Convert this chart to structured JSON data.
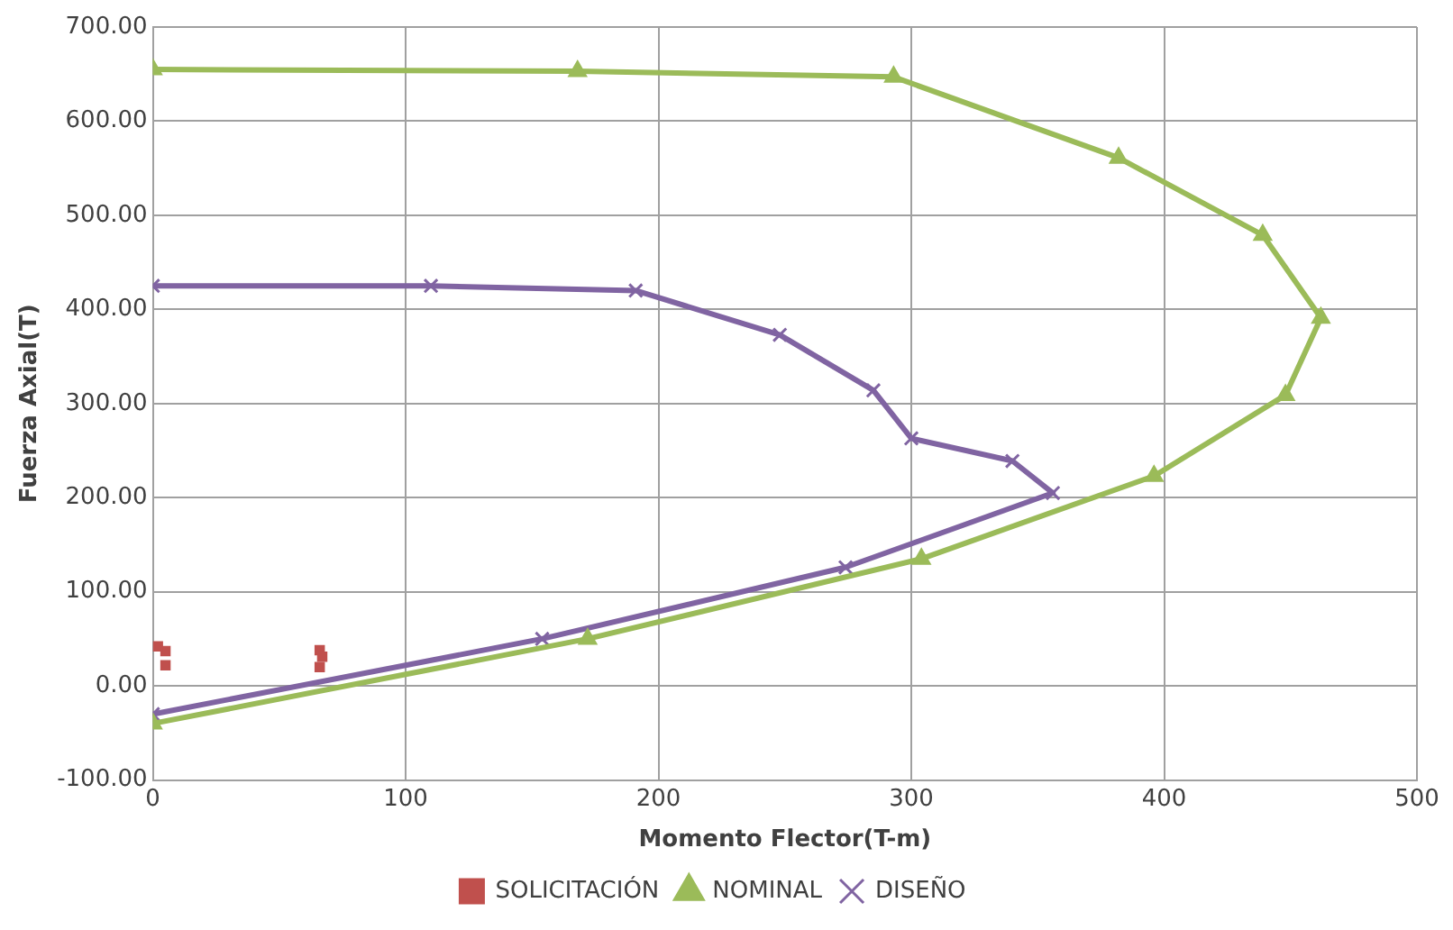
{
  "chart_data": {
    "type": "line",
    "xlabel": "Momento Flector(T-m)",
    "ylabel": "Fuerza Axial(T)",
    "xlim": [
      0,
      500
    ],
    "xticks": [
      0,
      100,
      200,
      300,
      400,
      500
    ],
    "ylim": [
      -100,
      700
    ],
    "yticks": [
      {
        "value": -100,
        "label": "-100.00"
      },
      {
        "value": 0,
        "label": "0.00"
      },
      {
        "value": 100,
        "label": "100.00"
      },
      {
        "value": 200,
        "label": "200.00"
      },
      {
        "value": 300,
        "label": "300.00"
      },
      {
        "value": 400,
        "label": "400.00"
      },
      {
        "value": 500,
        "label": "500.00"
      },
      {
        "value": 600,
        "label": "600.00"
      },
      {
        "value": 700,
        "label": "700.00"
      }
    ],
    "grid": true,
    "legend": "bottom",
    "series": [
      {
        "name": "SOLICITACIÓN",
        "type": "scatter",
        "marker": "square",
        "color": "#c0504d",
        "x": [
          2,
          5,
          5,
          66,
          67,
          66
        ],
        "values": [
          42,
          37,
          22,
          38,
          31,
          20
        ]
      },
      {
        "name": "NOMINAL",
        "type": "line",
        "marker": "triangle",
        "color": "#9bbb59",
        "x": [
          0,
          168,
          293,
          382,
          439,
          462,
          448,
          396,
          304,
          172,
          0
        ],
        "values": [
          655,
          653,
          647,
          561,
          479,
          391,
          309,
          223,
          135,
          50,
          -40
        ]
      },
      {
        "name": "DISEÑO",
        "type": "line",
        "marker": "cross",
        "color": "#8064a2",
        "x": [
          0,
          110,
          191,
          248,
          285,
          300,
          340,
          356,
          274,
          154,
          0
        ],
        "values": [
          425,
          425,
          420,
          373,
          314,
          263,
          239,
          205,
          126,
          50,
          -30
        ]
      }
    ]
  }
}
